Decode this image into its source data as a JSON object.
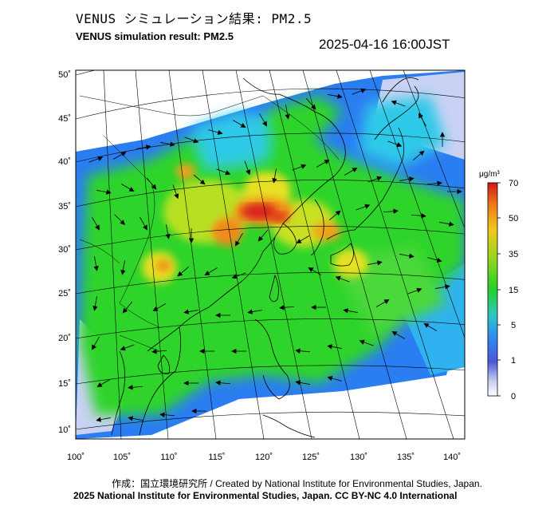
{
  "header": {
    "title_jp": "VENUS シミュレーション結果: PM2.5",
    "title_en": "VENUS simulation result: PM2.5",
    "timestamp": "2025-04-16 16:00JST"
  },
  "map": {
    "lat_labels": [
      "50˚",
      "45˚",
      "40˚",
      "35˚",
      "30˚",
      "25˚",
      "20˚",
      "15˚",
      "10˚"
    ],
    "lon_labels": [
      "100˚",
      "105˚",
      "110˚",
      "115˚",
      "120˚",
      "125˚",
      "130˚",
      "135˚",
      "140˚"
    ],
    "colors": {
      "low": "#e8ecf8",
      "blue": "#2b7df2",
      "cyan": "#2fc9e8",
      "green": "#2fd42a",
      "yellow": "#e6e021",
      "orange": "#f08a1c",
      "red": "#d8231c"
    }
  },
  "colorbar": {
    "unit": "μg/m³",
    "tick_labels": [
      "70",
      "50",
      "35",
      "15",
      "5",
      "1",
      "0"
    ],
    "stops": [
      "#d0161b",
      "#f07819",
      "#f0c81c",
      "#9ad61f",
      "#22d02a",
      "#2fc8c0",
      "#2d8df0",
      "#4a58d8",
      "#c8cdf2",
      "#ffffff"
    ]
  },
  "footer": {
    "line1": "作成：国立環境研究所 / Created by National Institute for Environmental Studies, Japan.",
    "line2": "2025 National Institute for Environmental Studies, Japan. CC BY-NC 4.0 International"
  }
}
